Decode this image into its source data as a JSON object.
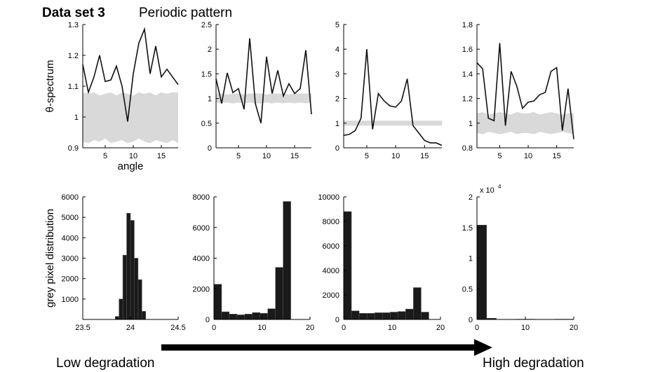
{
  "header": {
    "title": "Data set 3",
    "subtitle": "Periodic pattern"
  },
  "footer": {
    "left": "Low degradation",
    "right": "High degradation"
  },
  "chart_data": [
    {
      "type": "line",
      "ylabel": "θ-spectrum",
      "xlabel": "angle",
      "x": [
        1,
        2,
        3,
        4,
        5,
        6,
        7,
        8,
        9,
        10,
        11,
        12,
        13,
        14,
        15,
        16,
        17,
        18
      ],
      "xlim": [
        1,
        18
      ],
      "xticks": [
        5,
        10,
        15
      ],
      "ylim": [
        0.9,
        1.3
      ],
      "yticks": [
        0.9,
        1,
        1.1,
        1.2,
        1.3
      ],
      "series": [
        {
          "color": "#111111",
          "values": [
            1.17,
            1.08,
            1.13,
            1.2,
            1.115,
            1.12,
            1.165,
            1.1,
            0.985,
            1.14,
            1.24,
            1.285,
            1.14,
            1.23,
            1.13,
            1.155,
            1.13,
            1.105
          ]
        }
      ],
      "band": {
        "color": "#d9d9d9",
        "upper": [
          1.08,
          1.075,
          1.08,
          1.07,
          1.075,
          1.08,
          1.07,
          1.08,
          1.075,
          1.07,
          1.08,
          1.075,
          1.08,
          1.07,
          1.08,
          1.075,
          1.08,
          1.08
        ],
        "lower": [
          0.92,
          0.915,
          0.925,
          0.92,
          0.93,
          0.915,
          0.92,
          0.925,
          0.915,
          0.92,
          0.93,
          0.92,
          0.915,
          0.925,
          0.92,
          0.915,
          0.925,
          0.915
        ]
      }
    },
    {
      "type": "line",
      "x": [
        1,
        2,
        3,
        4,
        5,
        6,
        7,
        8,
        9,
        10,
        11,
        12,
        13,
        14,
        15,
        16,
        17,
        18
      ],
      "xlim": [
        1,
        18
      ],
      "xticks": [
        5,
        10,
        15
      ],
      "ylim": [
        0,
        2.5
      ],
      "yticks": [
        0,
        0.5,
        1,
        1.5,
        2,
        2.5
      ],
      "series": [
        {
          "color": "#111111",
          "values": [
            1.4,
            0.9,
            1.52,
            1.12,
            1.2,
            0.78,
            2.22,
            0.9,
            0.5,
            1.85,
            1.1,
            1.57,
            1.05,
            1.3,
            1.1,
            1.2,
            1.98,
            0.68
          ]
        }
      ],
      "band": {
        "color": "#d9d9d9",
        "upper": [
          1.1,
          1.1,
          1.08,
          1.1,
          1.1,
          1.08,
          1.1,
          1.1,
          1.1,
          1.08,
          1.1,
          1.1,
          1.1,
          1.08,
          1.1,
          1.1,
          1.1,
          1.1
        ],
        "lower": [
          0.92,
          0.9,
          0.92,
          0.9,
          0.92,
          0.9,
          0.92,
          0.9,
          0.9,
          0.92,
          0.9,
          0.92,
          0.9,
          0.92,
          0.9,
          0.92,
          0.9,
          0.92
        ]
      }
    },
    {
      "type": "line",
      "x": [
        1,
        2,
        3,
        4,
        5,
        6,
        7,
        8,
        9,
        10,
        11,
        12,
        13,
        14,
        15,
        16,
        17,
        18
      ],
      "xlim": [
        1,
        18
      ],
      "xticks": [
        5,
        10,
        15
      ],
      "ylim": [
        0,
        5
      ],
      "yticks": [
        0,
        1,
        2,
        3,
        4,
        5
      ],
      "series": [
        {
          "color": "#111111",
          "values": [
            0.5,
            0.55,
            0.7,
            1.2,
            4.0,
            0.75,
            2.2,
            1.9,
            1.7,
            1.65,
            1.9,
            2.8,
            0.9,
            0.6,
            0.3,
            0.2,
            0.2,
            0.1
          ]
        }
      ],
      "band": {
        "color": "#d9d9d9",
        "upper": [
          1.1,
          1.1,
          1.1,
          1.1,
          1.1,
          1.1,
          1.1,
          1.1,
          1.1,
          1.1,
          1.1,
          1.1,
          1.1,
          1.1,
          1.1,
          1.1,
          1.1,
          1.1
        ],
        "lower": [
          0.9,
          0.9,
          0.9,
          0.9,
          0.9,
          0.9,
          0.9,
          0.9,
          0.9,
          0.9,
          0.9,
          0.9,
          0.9,
          0.9,
          0.9,
          0.9,
          0.9,
          0.9
        ]
      }
    },
    {
      "type": "line",
      "x": [
        1,
        2,
        3,
        4,
        5,
        6,
        7,
        8,
        9,
        10,
        11,
        12,
        13,
        14,
        15,
        16,
        17,
        18
      ],
      "xlim": [
        1,
        18
      ],
      "xticks": [
        5,
        10,
        15
      ],
      "ylim": [
        0.8,
        1.8
      ],
      "yticks": [
        0.8,
        1,
        1.2,
        1.4,
        1.6,
        1.8
      ],
      "series": [
        {
          "color": "#111111",
          "values": [
            1.49,
            1.44,
            1.04,
            1.02,
            1.65,
            0.98,
            1.42,
            1.3,
            1.12,
            1.17,
            1.18,
            1.23,
            1.25,
            1.42,
            1.45,
            0.94,
            1.28,
            0.87
          ]
        }
      ],
      "band": {
        "color": "#d9d9d9",
        "upper": [
          1.08,
          1.09,
          1.07,
          1.08,
          1.09,
          1.08,
          1.07,
          1.09,
          1.08,
          1.08,
          1.09,
          1.07,
          1.08,
          1.09,
          1.08,
          1.07,
          1.08,
          1.08
        ],
        "lower": [
          0.92,
          0.91,
          0.93,
          0.92,
          0.91,
          0.92,
          0.93,
          0.91,
          0.92,
          0.92,
          0.91,
          0.93,
          0.92,
          0.91,
          0.92,
          0.93,
          0.92,
          0.91
        ]
      }
    },
    {
      "type": "histogram",
      "ylabel": "grey pixel distribution",
      "color": "#1a1a1a",
      "bins": [
        23.84,
        23.88,
        23.92,
        23.96,
        24.0,
        24.04,
        24.08,
        24.12,
        24.16
      ],
      "values": [
        150,
        1000,
        3150,
        5200,
        4850,
        3000,
        1950,
        400
      ],
      "xlim": [
        23.5,
        24.5
      ],
      "xticks": [
        23.5,
        24,
        24.5
      ],
      "ylim": [
        0,
        6000
      ],
      "yticks": [
        1000,
        2000,
        3000,
        4000,
        5000,
        6000
      ]
    },
    {
      "type": "histogram",
      "color": "#1a1a1a",
      "bins": [
        0,
        1.6,
        3.2,
        4.8,
        6.4,
        8,
        9.6,
        11.2,
        12.8,
        14.4,
        16
      ],
      "values": [
        2300,
        500,
        350,
        300,
        350,
        450,
        400,
        700,
        3400,
        7700
      ],
      "xlim": [
        0,
        20
      ],
      "xticks": [
        0,
        10,
        20
      ],
      "ylim": [
        0,
        8000
      ],
      "yticks": [
        0,
        2000,
        4000,
        6000,
        8000
      ]
    },
    {
      "type": "histogram",
      "color": "#1a1a1a",
      "bins": [
        0,
        1.6,
        3.2,
        4.8,
        6.4,
        8,
        9.6,
        11.2,
        12.8,
        14.4,
        16,
        17.6
      ],
      "values": [
        8800,
        700,
        500,
        500,
        550,
        550,
        600,
        650,
        850,
        2600,
        600
      ],
      "xlim": [
        0,
        20
      ],
      "xticks": [
        0,
        10,
        20
      ],
      "ylim": [
        0,
        10000
      ],
      "yticks": [
        0,
        2000,
        4000,
        6000,
        8000,
        10000
      ]
    },
    {
      "type": "histogram",
      "color": "#1a1a1a",
      "bins": [
        0,
        2,
        4,
        6,
        8,
        10,
        12,
        14,
        16,
        18,
        20
      ],
      "values": [
        15400,
        200,
        0,
        0,
        50,
        50,
        0,
        0,
        50,
        50
      ],
      "xlim": [
        0,
        20
      ],
      "xticks": [
        0,
        10,
        20
      ],
      "ylim": [
        0,
        20000
      ],
      "yticks": [
        0,
        {
          "value": 5000,
          "label": "0.5"
        },
        {
          "value": 10000,
          "label": "1"
        },
        {
          "value": 15000,
          "label": "1.5"
        },
        {
          "value": 20000,
          "label": "2"
        }
      ],
      "y_multiplier": {
        "base": "x 10",
        "exponent": "4"
      }
    }
  ]
}
